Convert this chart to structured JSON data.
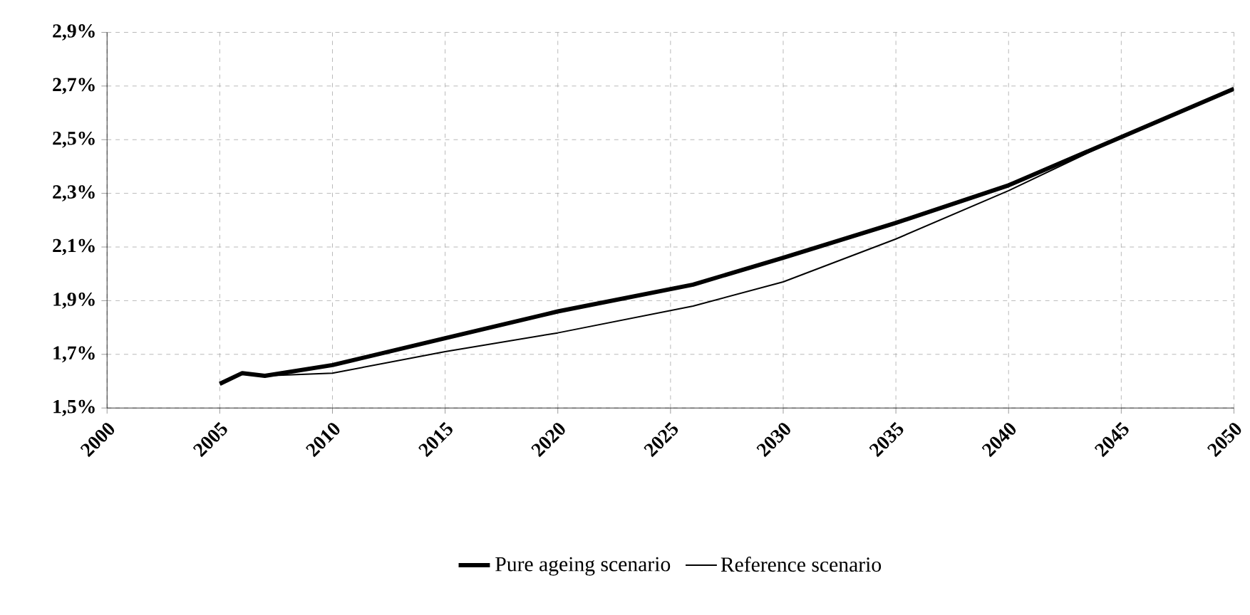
{
  "chart_data": {
    "type": "line",
    "xlim": [
      2000,
      2050
    ],
    "xticks": [
      2000,
      2005,
      2010,
      2015,
      2020,
      2025,
      2030,
      2035,
      2040,
      2045,
      2050
    ],
    "ylim": [
      1.5,
      2.9
    ],
    "yticks": [
      {
        "value": 1.5,
        "label": "1,5%"
      },
      {
        "value": 1.7,
        "label": "1,7%"
      },
      {
        "value": 1.9,
        "label": "1,9%"
      },
      {
        "value": 2.1,
        "label": "2,1%"
      },
      {
        "value": 2.3,
        "label": "2,3%"
      },
      {
        "value": 2.5,
        "label": "2,5%"
      },
      {
        "value": 2.7,
        "label": "2,7%"
      },
      {
        "value": 2.9,
        "label": "2,9%"
      }
    ],
    "grid": true,
    "legend": "bottom",
    "x": [
      2005,
      2006,
      2007,
      2010,
      2015,
      2020,
      2026,
      2030,
      2035,
      2040,
      2045,
      2050
    ],
    "series": [
      {
        "name": "Pure ageing scenario",
        "color": "#000000",
        "values": [
          1.59,
          1.63,
          1.62,
          1.66,
          1.76,
          1.86,
          1.96,
          2.06,
          2.19,
          2.33,
          2.51,
          2.69
        ]
      },
      {
        "name": "Reference scenario",
        "color": "#000000",
        "values": [
          1.59,
          1.63,
          1.62,
          1.63,
          1.71,
          1.78,
          1.88,
          1.97,
          2.13,
          2.31,
          2.51,
          2.69
        ]
      }
    ]
  }
}
